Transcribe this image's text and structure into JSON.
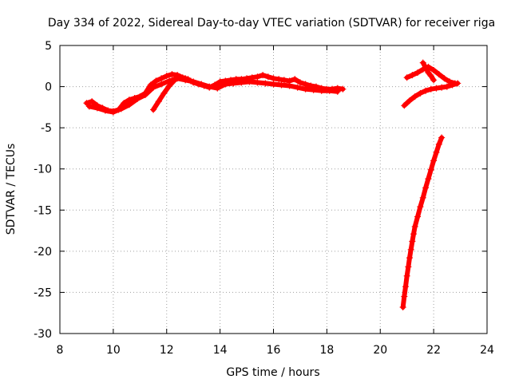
{
  "chart_data": {
    "type": "scatter",
    "title": "Day 334 of 2022, Sidereal Day-to-day VTEC variation (SDTVAR) for receiver riga",
    "xlabel": "GPS time / hours",
    "ylabel": "SDTVAR / TECUs",
    "xlim": [
      8,
      24
    ],
    "ylim": [
      -30,
      5
    ],
    "xticks": [
      8,
      10,
      12,
      14,
      16,
      18,
      20,
      22,
      24
    ],
    "yticks": [
      5,
      0,
      -5,
      -10,
      -15,
      -20,
      -25,
      -30
    ],
    "grid": true,
    "marker": "+",
    "marker_color": "#ff0000",
    "series": [
      {
        "x": [
          9.0,
          9.2,
          9.4,
          9.6,
          9.8,
          10.0,
          10.2,
          10.4,
          10.6,
          10.8,
          11.0,
          11.2,
          11.4,
          11.6,
          11.8,
          12.0,
          12.2,
          12.4,
          12.6,
          12.8,
          13.0,
          13.2,
          13.4,
          13.6,
          13.8,
          14.0,
          14.2,
          14.4,
          14.6,
          14.8,
          15.0,
          15.2,
          15.4,
          15.6,
          15.8,
          16.0,
          16.2,
          16.4,
          16.6,
          16.8,
          17.0,
          17.2,
          17.4,
          17.6,
          17.8,
          18.0,
          18.2,
          18.4,
          18.6
        ],
        "y": [
          -2.0,
          -1.8,
          -2.3,
          -2.6,
          -2.9,
          -3.0,
          -2.8,
          -2.0,
          -1.6,
          -1.4,
          -1.2,
          -0.8,
          0.2,
          0.7,
          1.0,
          1.3,
          1.5,
          1.4,
          1.1,
          0.9,
          0.5,
          0.3,
          0.1,
          -0.1,
          0.2,
          0.6,
          0.7,
          0.8,
          0.9,
          0.9,
          1.0,
          1.1,
          1.2,
          1.4,
          1.2,
          1.0,
          0.9,
          0.8,
          0.7,
          0.9,
          0.5,
          0.3,
          0.1,
          0.0,
          -0.2,
          -0.3,
          -0.3,
          -0.2,
          -0.3
        ]
      },
      {
        "x": [
          9.1,
          9.4,
          9.7,
          10.0,
          10.3,
          10.6,
          10.9,
          11.2,
          11.5,
          11.8,
          12.1,
          12.4,
          12.7,
          13.0,
          13.3,
          13.6,
          13.9,
          14.2,
          14.5,
          14.8,
          15.1,
          15.4,
          15.7,
          16.0,
          16.3,
          16.6,
          16.9,
          17.2,
          17.5,
          17.8,
          18.1,
          18.4
        ],
        "y": [
          -2.4,
          -2.6,
          -2.9,
          -3.1,
          -2.7,
          -2.2,
          -1.5,
          -1.0,
          -0.1,
          0.3,
          0.7,
          1.0,
          0.8,
          0.6,
          0.3,
          0.0,
          -0.2,
          0.3,
          0.4,
          0.5,
          0.6,
          0.5,
          0.4,
          0.3,
          0.2,
          0.1,
          -0.1,
          -0.3,
          -0.4,
          -0.5,
          -0.5,
          -0.6
        ]
      },
      {
        "x": [
          11.5,
          11.7,
          11.9,
          12.1,
          12.3,
          12.5,
          12.7,
          12.9
        ],
        "y": [
          -2.8,
          -1.8,
          -0.8,
          0.1,
          0.8,
          1.2,
          1.0,
          0.7
        ]
      },
      {
        "x": [
          21.0,
          21.2,
          21.4,
          21.6,
          21.8,
          22.0,
          22.2,
          22.4,
          22.6,
          22.8
        ],
        "y": [
          1.1,
          1.4,
          1.7,
          2.1,
          2.4,
          2.0,
          1.5,
          1.0,
          0.6,
          0.4
        ]
      },
      {
        "x": [
          20.9,
          21.1,
          21.3,
          21.5,
          21.7,
          21.9,
          22.1,
          22.3,
          22.5,
          22.7,
          22.9
        ],
        "y": [
          -2.3,
          -1.7,
          -1.2,
          -0.8,
          -0.5,
          -0.3,
          -0.2,
          -0.1,
          0.0,
          0.2,
          0.4
        ]
      },
      {
        "x": [
          21.6,
          21.7,
          21.8,
          21.9,
          22.0
        ],
        "y": [
          2.9,
          2.3,
          1.7,
          1.3,
          0.8
        ]
      },
      {
        "x": [
          20.85,
          20.9,
          20.95,
          21.0,
          21.05,
          21.1,
          21.15,
          21.2,
          21.25,
          21.3,
          21.4,
          21.5,
          21.6,
          21.7,
          21.8,
          21.9,
          22.0,
          22.1,
          22.2,
          22.3
        ],
        "y": [
          -26.8,
          -25.5,
          -24.3,
          -23.0,
          -21.9,
          -20.8,
          -19.8,
          -18.8,
          -17.9,
          -17.0,
          -15.8,
          -14.6,
          -13.5,
          -12.3,
          -11.2,
          -10.1,
          -9.0,
          -8.0,
          -7.0,
          -6.2
        ]
      }
    ]
  }
}
